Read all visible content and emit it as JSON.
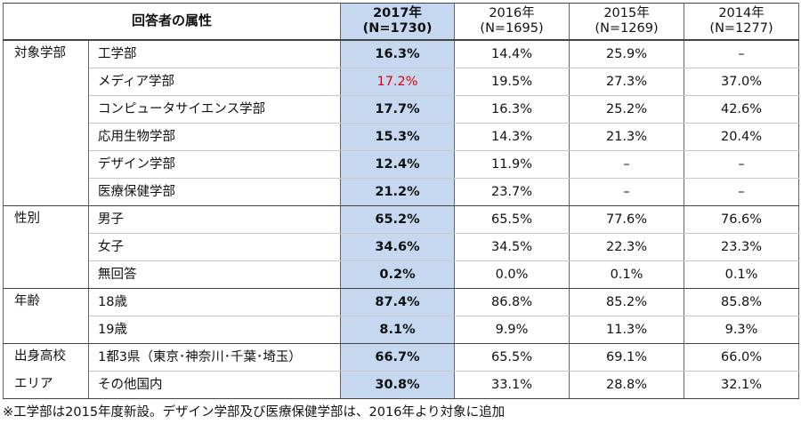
{
  "header": {
    "attr": "回答者の属性",
    "cols": [
      {
        "year": "2017年",
        "n": "(N=1730)"
      },
      {
        "year": "2016年",
        "n": "(N=1695)"
      },
      {
        "year": "2015年",
        "n": "(N=1269)"
      },
      {
        "year": "2014年",
        "n": "(N=1277)"
      }
    ]
  },
  "groups": [
    {
      "label": "対象学部",
      "label2": "",
      "rows": [
        {
          "name": "工学部",
          "v": [
            "16.3%",
            "14.4%",
            "25.9%",
            "–"
          ]
        },
        {
          "name": "メディア学部",
          "v": [
            "17.2%",
            "19.5%",
            "27.3%",
            "37.0%"
          ],
          "highlight_red": true
        },
        {
          "name": "コンピュータサイエンス学部",
          "v": [
            "17.7%",
            "16.3%",
            "25.2%",
            "42.6%"
          ]
        },
        {
          "name": "応用生物学部",
          "v": [
            "15.3%",
            "14.3%",
            "21.3%",
            "20.4%"
          ]
        },
        {
          "name": "デザイン学部",
          "v": [
            "12.4%",
            "11.9%",
            "–",
            "–"
          ]
        },
        {
          "name": "医療保健学部",
          "v": [
            "21.2%",
            "23.7%",
            "–",
            "–"
          ]
        }
      ]
    },
    {
      "label": "性別",
      "label2": "",
      "rows": [
        {
          "name": "男子",
          "v": [
            "65.2%",
            "65.5%",
            "77.6%",
            "76.6%"
          ]
        },
        {
          "name": "女子",
          "v": [
            "34.6%",
            "34.5%",
            "22.3%",
            "23.3%"
          ]
        },
        {
          "name": "無回答",
          "v": [
            "0.2%",
            "0.0%",
            "0.1%",
            "0.1%"
          ]
        }
      ]
    },
    {
      "label": "年齢",
      "label2": "",
      "rows": [
        {
          "name": "18歳",
          "v": [
            "87.4%",
            "86.8%",
            "85.2%",
            "85.8%"
          ]
        },
        {
          "name": "19歳",
          "v": [
            "8.1%",
            "9.9%",
            "11.3%",
            "9.3%"
          ]
        }
      ]
    },
    {
      "label": "出身高校",
      "label2": "エリア",
      "rows": [
        {
          "name": "1都3県（東京･神奈川･千葉･埼玉）",
          "v": [
            "66.7%",
            "65.5%",
            "69.1%",
            "66.0%"
          ]
        },
        {
          "name": "その他国内",
          "v": [
            "30.8%",
            "33.1%",
            "28.8%",
            "32.1%"
          ]
        }
      ]
    }
  ],
  "note": "※工学部は2015年度新設。デザイン学部及び医療保健学部は、2016年より対象に追加",
  "colors": {
    "highlight_bg": "#c5d8ef",
    "red_text": "#e00000"
  }
}
